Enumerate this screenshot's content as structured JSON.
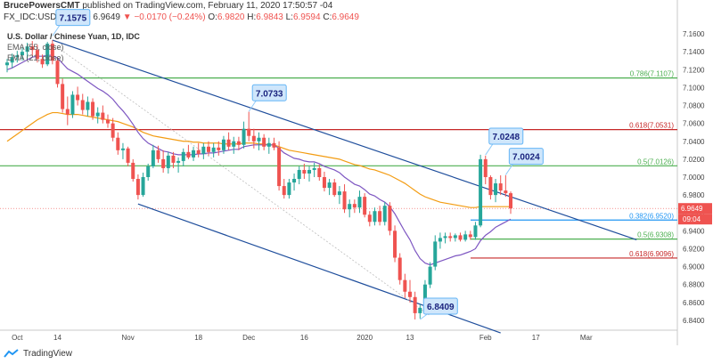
{
  "header": {
    "author": "BrucePowersCMT",
    "published": "published on TradingView.com, February 11, 2020 17:50:57 -04"
  },
  "symbol_line": {
    "symbol": "FX_IDC:USDCNY, 1D",
    "last": "6.9649",
    "change": "−0.0170 (−0.24%)",
    "open_label": "O:",
    "open": "6.9820",
    "high_label": "H:",
    "high": "6.9843",
    "low_label": "L:",
    "low": "6.9594",
    "close_label": "C:",
    "close": "6.9649"
  },
  "footer": {
    "brand": "TradingView"
  },
  "colors": {
    "up": "#26a69a",
    "down": "#ef5350",
    "ema55": "#f39c12",
    "ema21": "#7e57c2",
    "channel": "#1f4e9c",
    "fib_green": "#4caf50",
    "fib_red": "#c62828",
    "fib_blue": "#2196f3"
  },
  "chart_data": {
    "type": "candlestick",
    "title": "U.S. Dollar / Chinese Yuan, 1D, IDC",
    "legend": [
      "EMA (55, close)",
      "EMA (21, close)"
    ],
    "ylim": [
      6.83,
      7.17
    ],
    "y_ticks": [
      "7.1600",
      "7.1400",
      "7.1200",
      "7.1000",
      "7.0800",
      "7.0600",
      "7.0400",
      "7.0200",
      "7.0000",
      "6.9800",
      "6.9600",
      "6.9400",
      "6.9200",
      "6.9000",
      "6.8800",
      "6.8600",
      "6.8400"
    ],
    "x_ticks": [
      {
        "label": "Oct",
        "i": 2
      },
      {
        "label": "14",
        "i": 10
      },
      {
        "label": "Nov",
        "i": 24
      },
      {
        "label": "18",
        "i": 38
      },
      {
        "label": "Dec",
        "i": 48
      },
      {
        "label": "16",
        "i": 59
      },
      {
        "label": "2020",
        "i": 71
      },
      {
        "label": "13",
        "i": 80
      },
      {
        "label": "Feb",
        "i": 95
      },
      {
        "label": "17",
        "i": 105
      },
      {
        "label": "Mar",
        "i": 115
      }
    ],
    "price_label": "6.9649",
    "countdown_label": "09:04",
    "candles": [
      [
        7.125,
        7.132,
        7.117,
        7.128
      ],
      [
        7.128,
        7.138,
        7.122,
        7.134
      ],
      [
        7.134,
        7.141,
        7.128,
        7.136
      ],
      [
        7.136,
        7.145,
        7.13,
        7.14
      ],
      [
        7.14,
        7.15,
        7.132,
        7.146
      ],
      [
        7.146,
        7.152,
        7.135,
        7.142
      ],
      [
        7.142,
        7.148,
        7.128,
        7.132
      ],
      [
        7.132,
        7.137,
        7.122,
        7.126
      ],
      [
        7.126,
        7.151,
        7.124,
        7.149
      ],
      [
        7.149,
        7.153,
        7.126,
        7.13
      ],
      [
        7.13,
        7.133,
        7.1,
        7.104
      ],
      [
        7.104,
        7.11,
        7.072,
        7.076
      ],
      [
        7.076,
        7.09,
        7.058,
        7.07
      ],
      [
        7.07,
        7.096,
        7.066,
        7.092
      ],
      [
        7.092,
        7.101,
        7.08,
        7.086
      ],
      [
        7.086,
        7.093,
        7.07,
        7.075
      ],
      [
        7.075,
        7.09,
        7.068,
        7.084
      ],
      [
        7.084,
        7.088,
        7.064,
        7.068
      ],
      [
        7.068,
        7.078,
        7.06,
        7.072
      ],
      [
        7.072,
        7.08,
        7.06,
        7.064
      ],
      [
        7.064,
        7.07,
        7.055,
        7.06
      ],
      [
        7.06,
        7.066,
        7.04,
        7.044
      ],
      [
        7.044,
        7.05,
        7.025,
        7.03
      ],
      [
        7.03,
        7.038,
        7.02,
        7.032
      ],
      [
        7.032,
        7.034,
        7.012,
        7.016
      ],
      [
        7.016,
        7.02,
        6.995,
        6.998
      ],
      [
        6.998,
        7.003,
        6.975,
        6.98
      ],
      [
        6.98,
        7.005,
        6.978,
        7.0
      ],
      [
        7.0,
        7.015,
        6.996,
        7.012
      ],
      [
        7.012,
        7.036,
        7.01,
        7.03
      ],
      [
        7.03,
        7.035,
        7.016,
        7.02
      ],
      [
        7.02,
        7.03,
        7.005,
        7.01
      ],
      [
        7.01,
        7.028,
        7.004,
        7.024
      ],
      [
        7.024,
        7.028,
        7.01,
        7.016
      ],
      [
        7.016,
        7.022,
        7.005,
        7.018
      ],
      [
        7.018,
        7.032,
        7.012,
        7.028
      ],
      [
        7.028,
        7.036,
        7.02,
        7.022
      ],
      [
        7.022,
        7.034,
        7.018,
        7.03
      ],
      [
        7.03,
        7.038,
        7.022,
        7.026
      ],
      [
        7.026,
        7.038,
        7.02,
        7.034
      ],
      [
        7.034,
        7.04,
        7.024,
        7.028
      ],
      [
        7.028,
        7.038,
        7.022,
        7.033
      ],
      [
        7.033,
        7.04,
        7.024,
        7.03
      ],
      [
        7.03,
        7.046,
        7.026,
        7.042
      ],
      [
        7.042,
        7.05,
        7.03,
        7.034
      ],
      [
        7.034,
        7.045,
        7.026,
        7.04
      ],
      [
        7.04,
        7.045,
        7.03,
        7.036
      ],
      [
        7.036,
        7.062,
        7.032,
        7.054
      ],
      [
        7.054,
        7.073,
        7.04,
        7.046
      ],
      [
        7.046,
        7.054,
        7.032,
        7.04
      ],
      [
        7.04,
        7.05,
        7.03,
        7.044
      ],
      [
        7.044,
        7.048,
        7.03,
        7.034
      ],
      [
        7.034,
        7.044,
        7.026,
        7.038
      ],
      [
        7.038,
        7.044,
        7.03,
        7.033
      ],
      [
        7.033,
        7.04,
        6.985,
        6.99
      ],
      [
        6.99,
        6.998,
        6.976,
        6.98
      ],
      [
        6.98,
        6.998,
        6.976,
        6.994
      ],
      [
        6.994,
        7.004,
        6.985,
        6.998
      ],
      [
        6.998,
        7.012,
        6.992,
        7.008
      ],
      [
        7.008,
        7.015,
        6.998,
        7.004
      ],
      [
        7.004,
        7.012,
        6.995,
        7.008
      ],
      [
        7.008,
        7.016,
        7.0,
        7.01
      ],
      [
        7.01,
        7.014,
        6.996,
        7.0
      ],
      [
        7.0,
        7.006,
        6.984,
        6.988
      ],
      [
        6.988,
        6.998,
        6.98,
        6.994
      ],
      [
        6.994,
        6.998,
        6.978,
        6.98
      ],
      [
        6.98,
        6.99,
        6.97,
        6.984
      ],
      [
        6.984,
        6.992,
        6.96,
        6.964
      ],
      [
        6.964,
        6.975,
        6.955,
        6.97
      ],
      [
        6.97,
        6.975,
        6.96,
        6.966
      ],
      [
        6.966,
        6.985,
        6.96,
        6.978
      ],
      [
        6.978,
        6.982,
        6.955,
        6.958
      ],
      [
        6.958,
        6.962,
        6.945,
        6.95
      ],
      [
        6.95,
        6.966,
        6.946,
        6.962
      ],
      [
        6.962,
        6.968,
        6.946,
        6.95
      ],
      [
        6.95,
        6.972,
        6.946,
        6.968
      ],
      [
        6.968,
        6.972,
        6.935,
        6.94
      ],
      [
        6.94,
        6.946,
        6.905,
        6.91
      ],
      [
        6.91,
        6.915,
        6.88,
        6.885
      ],
      [
        6.885,
        6.892,
        6.865,
        6.872
      ],
      [
        6.872,
        6.885,
        6.86,
        6.866
      ],
      [
        6.866,
        6.872,
        6.841,
        6.848
      ],
      [
        6.848,
        6.858,
        6.842,
        6.854
      ],
      [
        6.854,
        6.885,
        6.85,
        6.88
      ],
      [
        6.88,
        6.905,
        6.876,
        6.9
      ],
      [
        6.9,
        6.935,
        6.896,
        6.928
      ],
      [
        6.928,
        6.938,
        6.92,
        6.932
      ],
      [
        6.932,
        6.938,
        6.926,
        6.934
      ],
      [
        6.934,
        6.938,
        6.928,
        6.932
      ],
      [
        6.932,
        6.937,
        6.928,
        6.935
      ],
      [
        6.935,
        6.938,
        6.928,
        6.93
      ],
      [
        6.93,
        6.94,
        6.928,
        6.936
      ],
      [
        6.936,
        6.94,
        6.93,
        6.933
      ],
      [
        6.933,
        6.95,
        6.93,
        6.946
      ],
      [
        6.946,
        7.025,
        6.944,
        7.02
      ],
      [
        7.02,
        7.024,
        6.992,
        7.0
      ],
      [
        7.0,
        7.002,
        6.975,
        6.98
      ],
      [
        6.98,
        6.998,
        6.972,
        6.993
      ],
      [
        6.993,
        7.002,
        6.98,
        6.985
      ],
      [
        6.985,
        7.002,
        6.978,
        6.982
      ],
      [
        6.982,
        6.984,
        6.959,
        6.965
      ]
    ],
    "ema55": [
      7.04,
      7.044,
      7.048,
      7.052,
      7.056,
      7.06,
      7.064,
      7.067,
      7.07,
      7.072,
      7.072,
      7.071,
      7.07,
      7.07,
      7.07,
      7.069,
      7.068,
      7.067,
      7.066,
      7.065,
      7.064,
      7.063,
      7.062,
      7.06,
      7.058,
      7.056,
      7.053,
      7.05,
      7.048,
      7.046,
      7.045,
      7.044,
      7.043,
      7.042,
      7.041,
      7.04,
      7.04,
      7.039,
      7.039,
      7.038,
      7.038,
      7.038,
      7.038,
      7.037,
      7.037,
      7.037,
      7.037,
      7.038,
      7.038,
      7.038,
      7.037,
      7.037,
      7.036,
      7.036,
      7.034,
      7.032,
      7.03,
      7.029,
      7.028,
      7.027,
      7.026,
      7.025,
      7.024,
      7.023,
      7.022,
      7.021,
      7.02,
      7.018,
      7.016,
      7.014,
      7.013,
      7.011,
      7.009,
      7.008,
      7.006,
      7.004,
      7.002,
      6.999,
      6.996,
      6.993,
      6.989,
      6.985,
      6.981,
      6.978,
      6.976,
      6.974,
      6.972,
      6.971,
      6.97,
      6.969,
      6.968,
      6.967,
      6.966,
      6.966,
      6.967,
      6.967,
      6.967,
      6.967,
      6.967,
      6.967,
      6.967
    ],
    "ema21": [
      7.12,
      7.122,
      7.125,
      7.128,
      7.131,
      7.134,
      7.135,
      7.135,
      7.136,
      7.136,
      7.133,
      7.127,
      7.121,
      7.118,
      7.115,
      7.111,
      7.107,
      7.103,
      7.099,
      7.096,
      7.092,
      7.087,
      7.08,
      7.074,
      7.067,
      7.059,
      7.05,
      7.043,
      7.038,
      7.035,
      7.032,
      7.029,
      7.028,
      7.026,
      7.025,
      7.025,
      7.025,
      7.025,
      7.026,
      7.026,
      7.027,
      7.027,
      7.028,
      7.029,
      7.03,
      7.031,
      7.031,
      7.034,
      7.035,
      7.036,
      7.036,
      7.036,
      7.036,
      7.036,
      7.032,
      7.027,
      7.024,
      7.021,
      7.02,
      7.018,
      7.017,
      7.017,
      7.015,
      7.012,
      7.01,
      7.008,
      7.005,
      7.0,
      6.996,
      6.992,
      6.99,
      6.986,
      6.981,
      6.979,
      6.975,
      6.972,
      6.967,
      6.959,
      6.949,
      6.939,
      6.93,
      6.918,
      6.909,
      6.904,
      6.902,
      6.904,
      6.906,
      6.908,
      6.91,
      6.912,
      6.913,
      6.915,
      6.917,
      6.92,
      6.929,
      6.935,
      6.939,
      6.944,
      6.947,
      6.95,
      6.953
    ]
  },
  "fib_levels": [
    {
      "label": "0.786(7.1107)",
      "value": 7.1107,
      "color": "#4caf50"
    },
    {
      "label": "0.618(7.0531)",
      "value": 7.0531,
      "color": "#c62828"
    },
    {
      "label": "0.5(7.0126)",
      "value": 7.0126,
      "color": "#4caf50"
    },
    {
      "label": "0.382(6.9520)",
      "value": 6.952,
      "color": "#2196f3"
    },
    {
      "label": "0.5(6.9308)",
      "value": 6.9308,
      "color": "#4caf50"
    },
    {
      "label": "0.618(6.9096)",
      "value": 6.9096,
      "color": "#c62828"
    }
  ],
  "callouts": [
    {
      "label": "7.1575",
      "i": 9,
      "value": 7.1575
    },
    {
      "label": "7.0733",
      "i": 48,
      "value": 7.0733
    },
    {
      "label": "7.0248",
      "i": 95,
      "value": 7.0248
    },
    {
      "label": "7.0024",
      "i": 99,
      "value": 7.0024
    },
    {
      "label": "6.8409",
      "i": 82,
      "value": 6.8409
    }
  ],
  "channel_lines": [
    {
      "i1": 9,
      "v1": 7.153,
      "i2": 125,
      "v2": 6.93
    },
    {
      "i1": 26,
      "v1": 6.97,
      "i2": 98,
      "v2": 6.826
    }
  ]
}
